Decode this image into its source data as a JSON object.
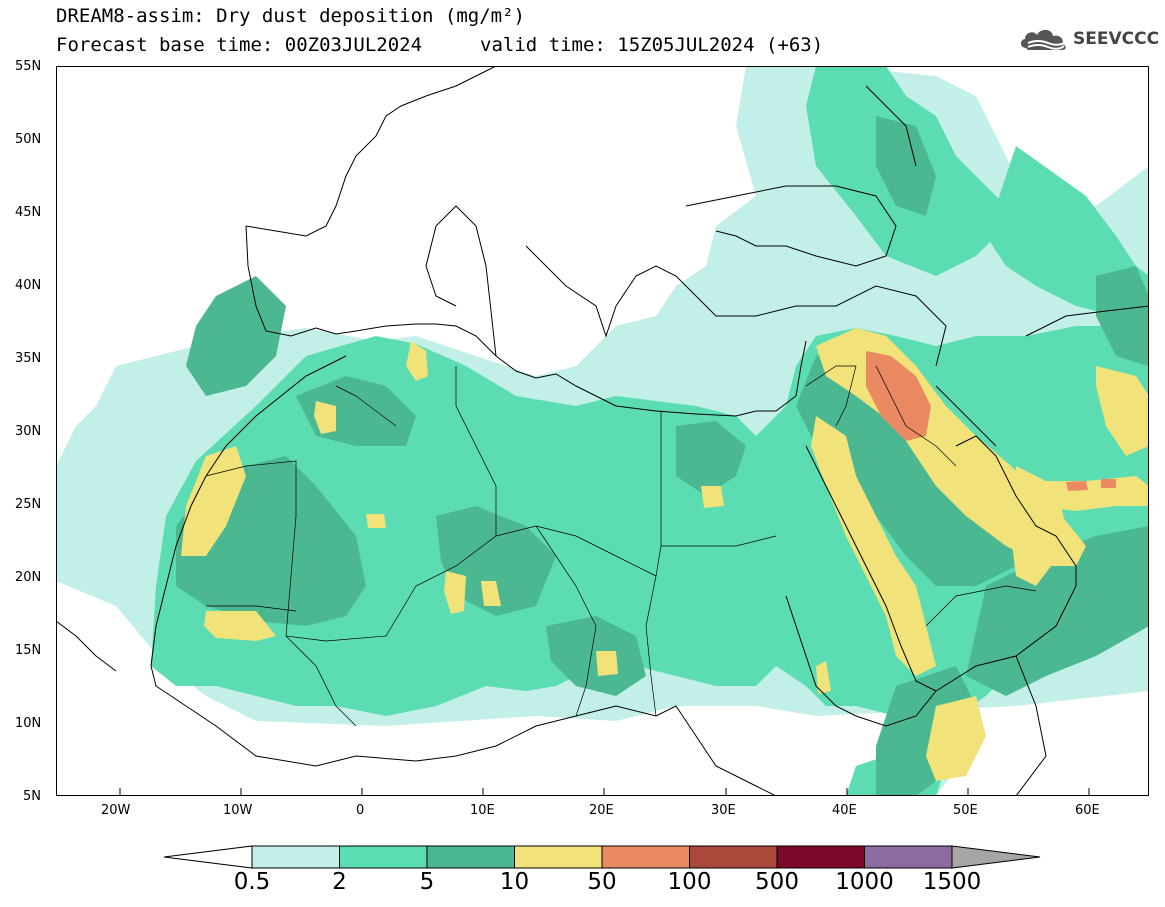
{
  "header": {
    "title": "DREAM8-assim: Dry dust deposition (mg/m²)",
    "base_time": "Forecast base time: 00Z03JUL2024",
    "valid_time": "valid time: 15Z05JUL2024 (+63)"
  },
  "logo": {
    "text": "SEEVCCC",
    "icon": "cloud-icon"
  },
  "axes": {
    "lat_labels": [
      "55N",
      "50N",
      "45N",
      "40N",
      "35N",
      "30N",
      "25N",
      "20N",
      "15N",
      "10N",
      "5N"
    ],
    "lon_labels": [
      "20W",
      "10W",
      "0",
      "10E",
      "20E",
      "30E",
      "40E",
      "50E",
      "60E"
    ]
  },
  "colorbar": {
    "labels": [
      "0.5",
      "2",
      "5",
      "10",
      "50",
      "100",
      "500",
      "1000",
      "1500"
    ],
    "colors": [
      "#c3efe9",
      "#5bdcb3",
      "#4cb891",
      "#f2e27a",
      "#e98a63",
      "#a9493c",
      "#7b0a2a",
      "#8d6a9f",
      "#a6a6a6"
    ]
  },
  "legend_colors": {
    "level1": "#c3efe9",
    "level2": "#5bdcb3",
    "level3": "#4cb891",
    "level4": "#f2e27a",
    "level5": "#e98a63"
  }
}
